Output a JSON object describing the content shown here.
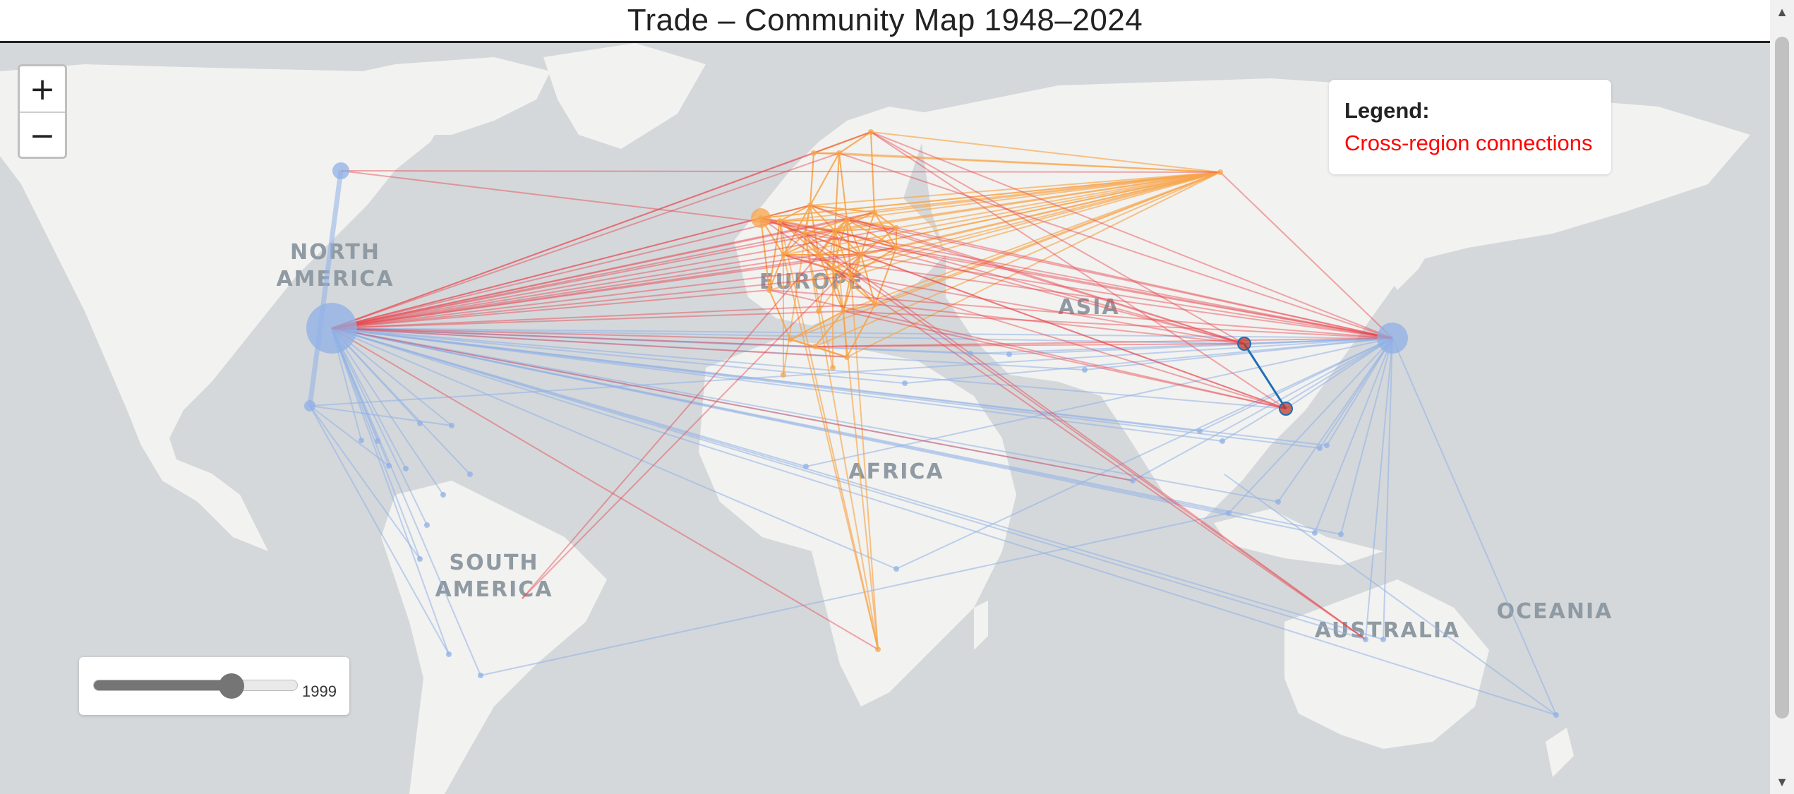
{
  "page": {
    "title": "Trade – Community Map 1948–2024"
  },
  "map": {
    "region_labels": [
      {
        "lines": [
          "NORTH",
          "AMERICA"
        ]
      },
      {
        "lines": [
          "EUROPE"
        ]
      },
      {
        "lines": [
          "ASIA"
        ]
      },
      {
        "lines": [
          "AFRICA"
        ]
      },
      {
        "lines": [
          "SOUTH",
          "AMERICA"
        ]
      },
      {
        "lines": [
          "AUSTRALIA"
        ]
      },
      {
        "lines": [
          "OCEANIA"
        ]
      }
    ],
    "colors": {
      "ocean": "#d4d8db",
      "land": "#f2f2f0",
      "borders": "#e8c9c9",
      "community_americas_asia": "#8fb0e6",
      "community_europe": "#f7a44a",
      "cross_region": "#e8434b",
      "highlight_link": "#1f6db5",
      "highlight_node": "#c0392b"
    }
  },
  "zoom": {
    "zoom_in_label": "+",
    "zoom_out_label": "−"
  },
  "legend": {
    "title": "Legend:",
    "items": [
      {
        "label": "Cross-region connections",
        "color": "#ff0000"
      }
    ]
  },
  "year_slider": {
    "min": 1948,
    "max": 2024,
    "value": 1999,
    "value_label": "1999"
  },
  "scrollbar": {
    "up_icon": "▲",
    "down_icon": "▼"
  }
}
